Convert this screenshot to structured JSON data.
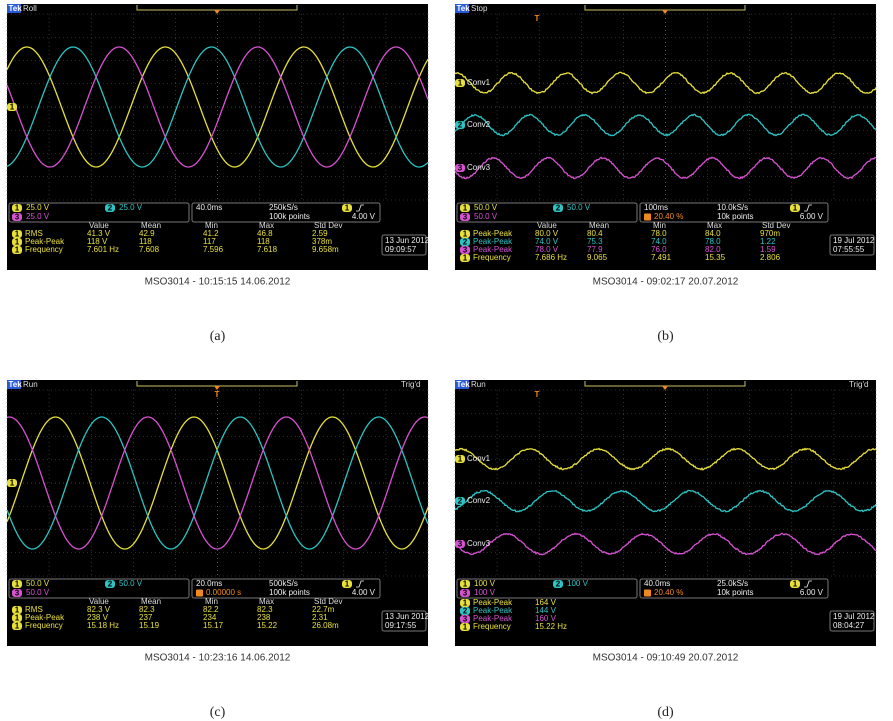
{
  "panels": [
    {
      "label": "(a)",
      "caption": "MSO3014 - 10:15:15   14.06.2012",
      "status": "Roll",
      "channels": [
        {
          "n": "1",
          "scale": "25.0 V"
        },
        {
          "n": "2",
          "scale": "25.0 V"
        },
        {
          "n": "3",
          "scale": "25.0 V"
        }
      ],
      "timebase": "40.0ms",
      "sample_rate": "250kS/s",
      "record": "100k points",
      "trigger_channel": "1",
      "trigger_level": "4.00 V",
      "headers": [
        "Value",
        "Mean",
        "Min",
        "Max",
        "Std Dev"
      ],
      "rows": [
        {
          "ch": "1",
          "name": "RMS",
          "values": [
            "41.3 V",
            "42.9",
            "41.2",
            "46.8",
            "2.59"
          ]
        },
        {
          "ch": "1",
          "name": "Peak-Peak",
          "values": [
            "118 V",
            "118",
            "117",
            "118",
            "378m"
          ]
        },
        {
          "ch": "1",
          "name": "Frequency",
          "values": [
            "7.601 Hz",
            "7.608",
            "7.596",
            "7.618",
            "9.658m"
          ]
        }
      ],
      "date": "13 Jun 2012",
      "time": "09:09:57",
      "ground_marker": "1"
    },
    {
      "label": "(b)",
      "caption": "MSO3014 - 09:02:17   20.07.2012",
      "status": "Stop",
      "channels": [
        {
          "n": "1",
          "scale": "50.0 V"
        },
        {
          "n": "2",
          "scale": "50.0 V"
        },
        {
          "n": "3",
          "scale": "50.0 V"
        }
      ],
      "timebase": "100ms",
      "sample_rate": "10.0kS/s",
      "trigger_position": "20.40 %",
      "record": "10k points",
      "trigger_channel": "1",
      "trigger_level": "6.00 V",
      "headers": [
        "Value",
        "Mean",
        "Min",
        "Max",
        "Std Dev"
      ],
      "rows": [
        {
          "ch": "1",
          "name": "Peak-Peak",
          "values": [
            "80.0 V",
            "80.4",
            "78.0",
            "84.0",
            "970m"
          ]
        },
        {
          "ch": "2",
          "name": "Peak-Peak",
          "values": [
            "74.0 V",
            "75.3",
            "74.0",
            "78.0",
            "1.22"
          ]
        },
        {
          "ch": "3",
          "name": "Peak-Peak",
          "values": [
            "78.0 V",
            "77.9",
            "76.0",
            "82.0",
            "1.59"
          ]
        },
        {
          "ch": "1",
          "name": "Frequency",
          "values": [
            "7.686 Hz",
            "9.065",
            "7.491",
            "15.35",
            "2.806"
          ]
        }
      ],
      "date": "19 Jul  2012",
      "time": "07:55:55",
      "traces": [
        {
          "n": "1",
          "label": "Conv1"
        },
        {
          "n": "2",
          "label": "Conv2"
        },
        {
          "n": "3",
          "label": "Conv3"
        }
      ]
    },
    {
      "label": "(c)",
      "caption": "MSO3014 - 10:23:16   14.06.2012",
      "status": "Run",
      "trigger_state": "Trig'd",
      "channels": [
        {
          "n": "1",
          "scale": "50.0 V"
        },
        {
          "n": "2",
          "scale": "50.0 V"
        },
        {
          "n": "3",
          "scale": "50.0 V"
        }
      ],
      "timebase": "20.0ms",
      "sample_rate": "500kS/s",
      "trigger_position": "0.00000 s",
      "record": "100k points",
      "trigger_channel": "1",
      "trigger_level": "4.00 V",
      "headers": [
        "Value",
        "Mean",
        "Min",
        "Max",
        "Std Dev"
      ],
      "rows": [
        {
          "ch": "1",
          "name": "RMS",
          "values": [
            "82.3 V",
            "82.3",
            "82.2",
            "82.3",
            "22.7m"
          ]
        },
        {
          "ch": "1",
          "name": "Peak-Peak",
          "values": [
            "238 V",
            "237",
            "234",
            "238",
            "2.31"
          ]
        },
        {
          "ch": "1",
          "name": "Frequency",
          "values": [
            "15.18 Hz",
            "15.19",
            "15.17",
            "15.22",
            "26.08m"
          ]
        }
      ],
      "date": "13 Jun 2012",
      "time": "09:17:55",
      "ground_marker": "1"
    },
    {
      "label": "(d)",
      "caption": "MSO3014 - 09:10:49   20.07.2012",
      "status": "Run",
      "trigger_state": "Trig'd",
      "channels": [
        {
          "n": "1",
          "scale": "100 V"
        },
        {
          "n": "2",
          "scale": "100 V"
        },
        {
          "n": "3",
          "scale": "100 V"
        }
      ],
      "timebase": "40.0ms",
      "sample_rate": "25.0kS/s",
      "trigger_position": "20.40 %",
      "record": "10k points",
      "trigger_channel": "1",
      "trigger_level": "6.00 V",
      "rows": [
        {
          "ch": "1",
          "name": "Peak-Peak",
          "values": [
            "164 V"
          ]
        },
        {
          "ch": "2",
          "name": "Peak-Peak",
          "values": [
            "144 V"
          ]
        },
        {
          "ch": "3",
          "name": "Peak-Peak",
          "values": [
            "160 V"
          ]
        },
        {
          "ch": "1",
          "name": "Frequency",
          "values": [
            "15.22 Hz"
          ]
        }
      ],
      "date": "19 Jul  2012",
      "time": "08:04:27",
      "traces": [
        {
          "n": "1",
          "label": "Conv1"
        },
        {
          "n": "2",
          "label": "Conv2"
        },
        {
          "n": "3",
          "label": "Conv3"
        }
      ]
    }
  ]
}
